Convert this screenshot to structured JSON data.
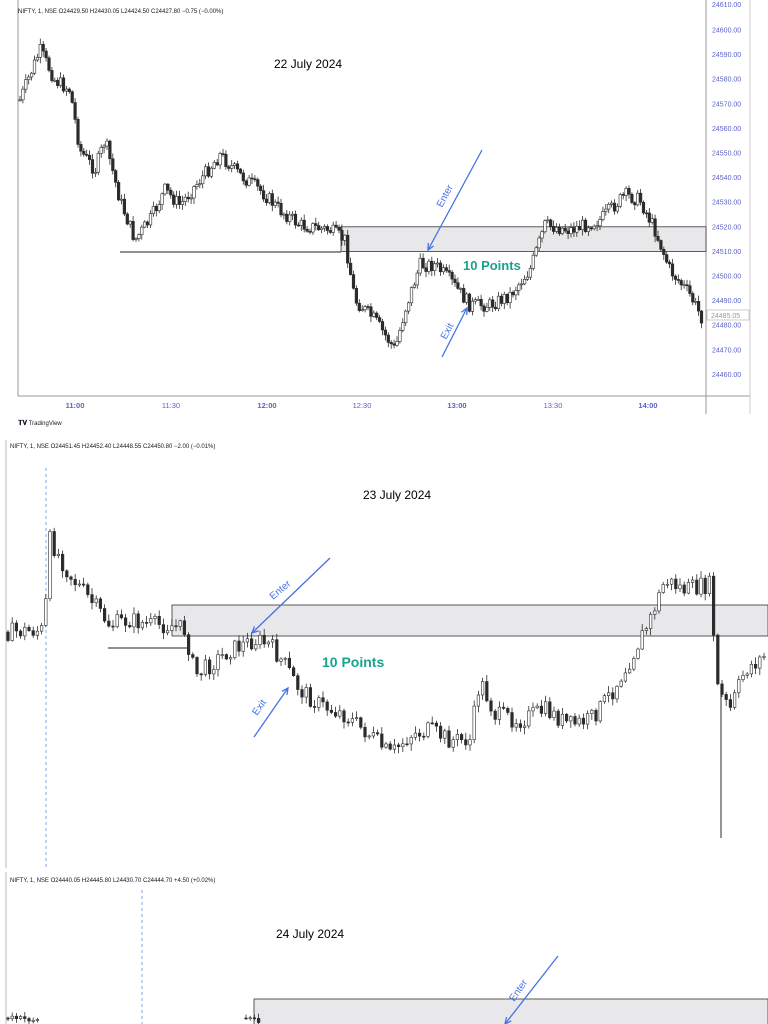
{
  "colors": {
    "up": "#ffffff",
    "down": "#2b2b2b",
    "zone": "#e8e8ea",
    "arrow": "#4472e6",
    "label": "#19a38a",
    "axis": "#5a62c8"
  },
  "chart_data": [
    {
      "type": "candlestick",
      "header": "NIFTY, 1, NSE  O24429.50  H24430.05  L24424.50  C24427.80  −0.75 (−0.00%)",
      "title": "22 July 2024",
      "y_ticks": [
        "24600.00",
        "24590.00",
        "24580.00",
        "24570.00",
        "24560.00",
        "24550.00",
        "24540.00",
        "24530.00",
        "24520.00",
        "24510.00",
        "24500.00",
        "24490.00",
        "24480.00",
        "24470.00",
        "24460.00"
      ],
      "y_top_label": "24610.00",
      "x_ticks": [
        "11:00",
        "11:30",
        "12:00",
        "12:30",
        "13:00",
        "13:30",
        "14:00"
      ],
      "last_price": "24485.05",
      "zone": [
        24510,
        24520
      ],
      "support_level": 24510,
      "annotations": [
        "Enter",
        "Exit",
        "10 Points"
      ],
      "watermark": "TradingView"
    },
    {
      "type": "candlestick",
      "header": "NIFTY, 1, NSE  O24451.45  H24452.40  L24448.55  C24450.80  −2.00 (−0.01%)",
      "title": "23 July 2024",
      "annotations": [
        "Enter",
        "Exit",
        "10 Points"
      ]
    },
    {
      "type": "candlestick",
      "header": "NIFTY, 1, NSE  O24440.05  H24445.80  L24430.70  C24444.70  +4.50 (+0.02%)",
      "title": "24 July 2024",
      "annotations": [
        "Enter"
      ]
    }
  ],
  "p1": {
    "enter": "Enter",
    "exit": "Exit",
    "points": "10 Points",
    "tv": "TradingView"
  },
  "p2": {
    "enter": "Enter",
    "exit": "Exit",
    "points": "10 Points"
  },
  "p3": {
    "enter": "Enter"
  }
}
